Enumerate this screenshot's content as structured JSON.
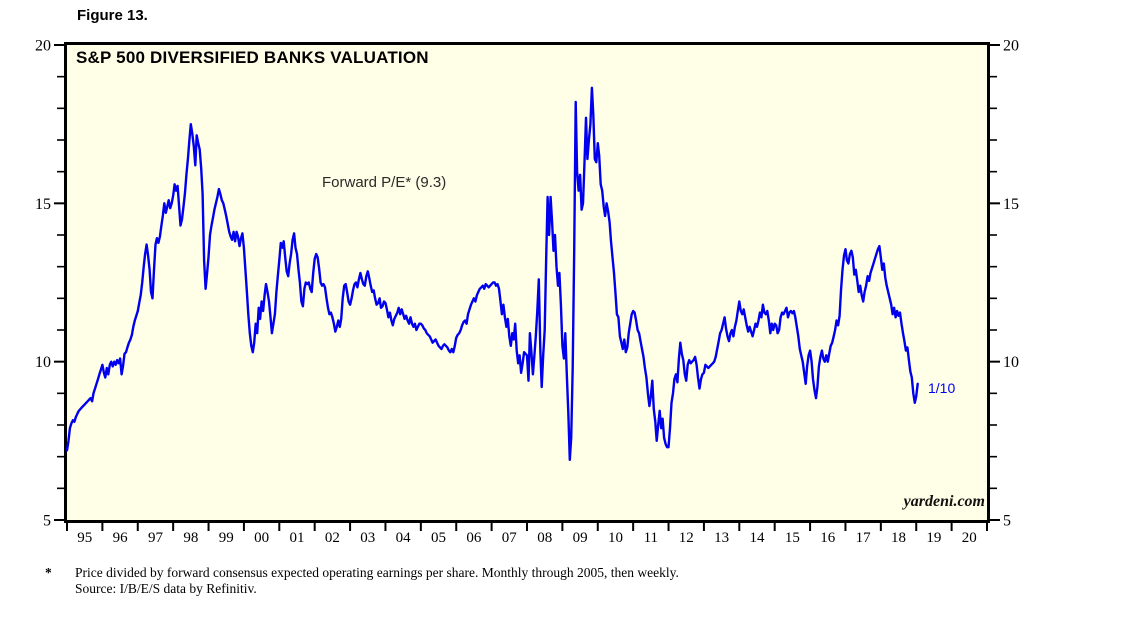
{
  "figure_label": "Figure 13.",
  "chart": {
    "title": "S&P 500 DIVERSIFIED BANKS VALUATION",
    "annotation": "Forward P/E* (9.3)",
    "last_point_label": "1/10",
    "watermark": "yardeni.com",
    "line_color": "#0000ee",
    "plot_background": "#fffee6"
  },
  "footnote": {
    "marker": "*",
    "line1": "Price divided by forward consensus expected operating earnings per share. Monthly through 2005, then weekly.",
    "line2": "Source: I/B/E/S data by Refinitiv."
  },
  "chart_data": {
    "type": "line",
    "title": "S&P 500 DIVERSIFIED BANKS VALUATION",
    "series_name": "Forward P/E",
    "latest_value": 9.3,
    "latest_point_label": "1/10",
    "x_range": [
      1995,
      2021
    ],
    "y_range": [
      5,
      20
    ],
    "y_major_ticks": [
      5,
      10,
      15,
      20
    ],
    "y_minor_ticks": [
      6,
      7,
      8,
      9,
      11,
      12,
      13,
      14,
      16,
      17,
      18,
      19
    ],
    "x_tick_labels": [
      "95",
      "96",
      "97",
      "98",
      "99",
      "00",
      "01",
      "02",
      "03",
      "04",
      "05",
      "06",
      "07",
      "08",
      "09",
      "10",
      "11",
      "12",
      "13",
      "14",
      "15",
      "16",
      "17",
      "18",
      "19",
      "20"
    ],
    "grid": false,
    "legend": "none",
    "start_year": 1995,
    "points_per_year": 24,
    "values": [
      7.2,
      7.5,
      7.9,
      8.05,
      8.15,
      8.1,
      8.25,
      8.35,
      8.45,
      8.5,
      8.55,
      8.6,
      8.65,
      8.7,
      8.75,
      8.8,
      8.85,
      8.75,
      9.0,
      9.15,
      9.3,
      9.45,
      9.6,
      9.75,
      9.9,
      9.65,
      9.5,
      9.8,
      9.6,
      9.9,
      10.0,
      9.85,
      10.0,
      9.9,
      10.05,
      9.95,
      10.1,
      9.6,
      9.85,
      10.25,
      10.3,
      10.45,
      10.6,
      10.7,
      10.85,
      11.1,
      11.3,
      11.45,
      11.6,
      11.85,
      12.1,
      12.5,
      13.0,
      13.4,
      13.7,
      13.35,
      12.9,
      12.2,
      12.0,
      12.9,
      13.7,
      13.9,
      13.75,
      13.95,
      14.3,
      14.6,
      15.0,
      14.7,
      14.9,
      15.1,
      14.85,
      15.0,
      15.25,
      15.6,
      15.4,
      15.55,
      14.9,
      14.3,
      14.5,
      14.9,
      15.3,
      15.9,
      16.4,
      17.0,
      17.5,
      17.2,
      16.8,
      16.2,
      17.15,
      16.9,
      16.7,
      16.1,
      15.3,
      13.2,
      12.3,
      12.8,
      13.3,
      14.0,
      14.3,
      14.55,
      14.8,
      15.0,
      15.2,
      15.45,
      15.3,
      15.1,
      15.0,
      14.8,
      14.6,
      14.35,
      14.1,
      13.95,
      13.85,
      14.1,
      13.8,
      14.1,
      13.95,
      13.65,
      13.9,
      14.05,
      13.6,
      12.9,
      12.2,
      11.5,
      10.9,
      10.5,
      10.3,
      10.6,
      11.2,
      10.9,
      11.7,
      11.35,
      11.9,
      11.6,
      12.1,
      12.45,
      12.2,
      11.9,
      11.4,
      10.9,
      11.2,
      11.5,
      12.2,
      12.7,
      13.2,
      13.75,
      13.6,
      13.8,
      13.3,
      12.85,
      12.7,
      13.1,
      13.4,
      13.85,
      14.05,
      13.6,
      13.4,
      12.9,
      12.5,
      11.9,
      11.75,
      12.3,
      12.5,
      12.45,
      12.5,
      12.3,
      12.2,
      12.8,
      13.25,
      13.4,
      13.3,
      12.95,
      12.5,
      12.4,
      12.45,
      12.35,
      12.0,
      11.7,
      11.5,
      11.55,
      11.4,
      11.2,
      10.95,
      11.1,
      11.3,
      11.1,
      11.35,
      12.0,
      12.4,
      12.45,
      12.2,
      11.9,
      11.8,
      12.0,
      12.25,
      12.45,
      12.5,
      12.35,
      12.6,
      12.8,
      12.6,
      12.45,
      12.4,
      12.7,
      12.85,
      12.65,
      12.4,
      12.2,
      12.25,
      12.0,
      11.8,
      11.85,
      12.0,
      11.7,
      11.75,
      11.9,
      11.85,
      11.65,
      11.4,
      11.55,
      11.3,
      11.15,
      11.35,
      11.45,
      11.55,
      11.7,
      11.5,
      11.65,
      11.5,
      11.35,
      11.45,
      11.3,
      11.2,
      11.4,
      11.2,
      11.1,
      11.2,
      11.0,
      11.1,
      11.2,
      11.2,
      11.15,
      11.05,
      11.0,
      10.9,
      10.85,
      10.8,
      10.7,
      10.6,
      10.65,
      10.7,
      10.6,
      10.5,
      10.45,
      10.4,
      10.5,
      10.55,
      10.5,
      10.45,
      10.35,
      10.3,
      10.4,
      10.3,
      10.5,
      10.75,
      10.85,
      10.9,
      11.0,
      11.15,
      11.25,
      11.3,
      11.2,
      11.5,
      11.65,
      11.8,
      11.9,
      12.0,
      11.9,
      12.1,
      12.2,
      12.3,
      12.35,
      12.4,
      12.3,
      12.45,
      12.4,
      12.35,
      12.4,
      12.45,
      12.5,
      12.5,
      12.4,
      12.45,
      12.3,
      11.9,
      11.5,
      11.8,
      11.4,
      11.1,
      11.35,
      10.8,
      10.5,
      10.9,
      10.7,
      11.2,
      10.35,
      9.95,
      10.2,
      9.65,
      9.95,
      10.3,
      10.25,
      10.2,
      9.4,
      10.9,
      10.3,
      9.6,
      10.2,
      10.8,
      11.6,
      12.6,
      10.4,
      9.2,
      10.2,
      11.0,
      13.3,
      15.2,
      14.0,
      15.2,
      14.4,
      13.5,
      14.0,
      13.0,
      12.4,
      12.8,
      11.8,
      10.5,
      10.1,
      10.9,
      9.6,
      8.4,
      6.9,
      7.6,
      9.8,
      13.5,
      18.2,
      16.0,
      15.4,
      15.9,
      14.8,
      15.0,
      16.3,
      17.7,
      16.4,
      17.0,
      17.5,
      18.65,
      17.8,
      16.4,
      16.3,
      16.9,
      16.5,
      15.6,
      15.4,
      14.9,
      14.6,
      15.0,
      14.75,
      14.4,
      13.8,
      13.3,
      12.8,
      12.15,
      11.5,
      11.4,
      10.8,
      10.6,
      10.4,
      10.7,
      10.3,
      10.45,
      10.9,
      11.2,
      11.5,
      11.6,
      11.55,
      11.3,
      11.0,
      10.9,
      10.65,
      10.4,
      10.15,
      9.8,
      9.5,
      9.0,
      8.6,
      8.9,
      9.4,
      8.5,
      8.1,
      7.5,
      8.0,
      8.45,
      7.9,
      8.2,
      7.6,
      7.4,
      7.3,
      7.3,
      7.9,
      8.7,
      9.0,
      9.45,
      9.6,
      9.35,
      10.1,
      10.6,
      10.25,
      10.05,
      9.6,
      9.4,
      9.9,
      10.05,
      9.95,
      10.0,
      10.05,
      10.15,
      9.9,
      9.5,
      9.15,
      9.45,
      9.6,
      9.65,
      9.9,
      9.85,
      9.8,
      9.85,
      9.9,
      9.95,
      10.0,
      10.15,
      10.4,
      10.65,
      10.9,
      11.0,
      11.2,
      11.4,
      11.05,
      10.8,
      10.65,
      10.9,
      11.0,
      10.8,
      11.1,
      11.3,
      11.6,
      11.9,
      11.6,
      11.5,
      11.65,
      11.4,
      11.15,
      10.95,
      11.1,
      10.95,
      10.8,
      11.0,
      11.2,
      11.1,
      11.3,
      11.55,
      11.4,
      11.8,
      11.55,
      11.5,
      11.6,
      11.3,
      10.9,
      11.2,
      11.0,
      11.2,
      11.15,
      10.9,
      11.0,
      11.4,
      11.55,
      11.5,
      11.6,
      11.7,
      11.4,
      11.55,
      11.6,
      11.53,
      11.6,
      11.4,
      11.1,
      10.8,
      10.4,
      10.2,
      10.0,
      9.65,
      9.3,
      9.85,
      10.2,
      10.35,
      10.0,
      9.45,
      9.1,
      8.85,
      9.2,
      9.85,
      10.15,
      10.35,
      10.1,
      10.0,
      10.2,
      10.0,
      10.25,
      10.5,
      10.6,
      10.8,
      11.0,
      11.3,
      11.15,
      11.45,
      12.25,
      12.9,
      13.35,
      13.55,
      13.2,
      13.1,
      13.4,
      13.5,
      13.3,
      12.75,
      12.9,
      12.55,
      12.2,
      12.4,
      12.1,
      11.9,
      12.2,
      12.4,
      12.7,
      12.55,
      12.8,
      12.95,
      13.1,
      13.25,
      13.4,
      13.55,
      13.65,
      13.3,
      12.9,
      13.1,
      12.65,
      12.4,
      12.2,
      12.0,
      11.8,
      11.5,
      11.7,
      11.4,
      11.6,
      11.45,
      11.55,
      11.2,
      10.9,
      10.65,
      10.35,
      10.45,
      10.05,
      9.7,
      9.5,
      9.0,
      8.7,
      8.9,
      9.3
    ]
  }
}
